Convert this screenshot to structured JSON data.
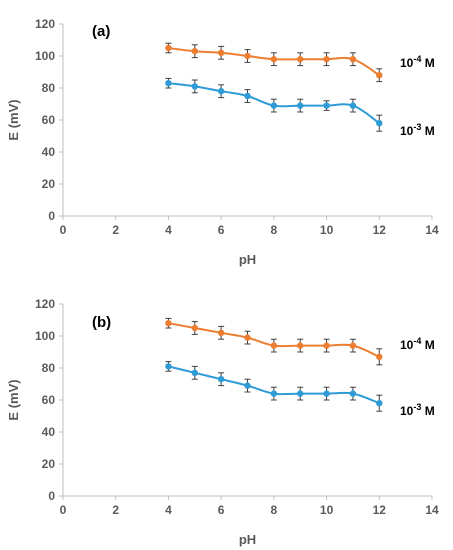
{
  "chart_data": [
    {
      "type": "line",
      "panel_label": "(a)",
      "xlabel": "pH",
      "ylabel": "E (mV)",
      "xlim": [
        0,
        14
      ],
      "ylim": [
        0,
        120
      ],
      "x_ticks": [
        0,
        2,
        4,
        6,
        8,
        10,
        12,
        14
      ],
      "y_ticks": [
        0,
        20,
        40,
        60,
        80,
        100,
        120
      ],
      "grid": false,
      "series": [
        {
          "label_base": "10",
          "label_exp": "-4",
          "label_unit": " M",
          "color": "#ED7D31",
          "x": [
            4,
            5,
            6,
            7,
            8,
            9,
            10,
            11,
            12
          ],
          "y": [
            105,
            103,
            102,
            100,
            98,
            98,
            98,
            98,
            88
          ],
          "err": [
            3,
            4,
            4,
            4,
            4,
            4,
            4,
            4,
            4
          ]
        },
        {
          "label_base": "10",
          "label_exp": "-3",
          "label_unit": " M",
          "color": "#2E9BD6",
          "x": [
            4,
            5,
            6,
            7,
            8,
            9,
            10,
            11,
            12
          ],
          "y": [
            83,
            81,
            78,
            75,
            69,
            69,
            69,
            69,
            58
          ],
          "err": [
            3,
            4,
            4,
            4,
            4,
            4,
            3,
            4,
            5
          ]
        }
      ]
    },
    {
      "type": "line",
      "panel_label": "(b)",
      "xlabel": "pH",
      "ylabel": "E (mV)",
      "xlim": [
        0,
        14
      ],
      "ylim": [
        0,
        120
      ],
      "x_ticks": [
        0,
        2,
        4,
        6,
        8,
        10,
        12,
        14
      ],
      "y_ticks": [
        0,
        20,
        40,
        60,
        80,
        100,
        120
      ],
      "grid": false,
      "series": [
        {
          "label_base": "10",
          "label_exp": "-4",
          "label_unit": " M",
          "color": "#ED7D31",
          "x": [
            4,
            5,
            6,
            7,
            8,
            9,
            10,
            11,
            12
          ],
          "y": [
            108,
            105,
            102,
            99,
            94,
            94,
            94,
            94,
            87
          ],
          "err": [
            3,
            4,
            4,
            4,
            4,
            4,
            4,
            4,
            5
          ]
        },
        {
          "label_base": "10",
          "label_exp": "-3",
          "label_unit": " M",
          "color": "#2E9BD6",
          "x": [
            4,
            5,
            6,
            7,
            8,
            9,
            10,
            11,
            12
          ],
          "y": [
            81,
            77,
            73,
            69,
            64,
            64,
            64,
            64,
            58
          ],
          "err": [
            3,
            4,
            4,
            4,
            4,
            4,
            4,
            4,
            5
          ]
        }
      ]
    }
  ]
}
